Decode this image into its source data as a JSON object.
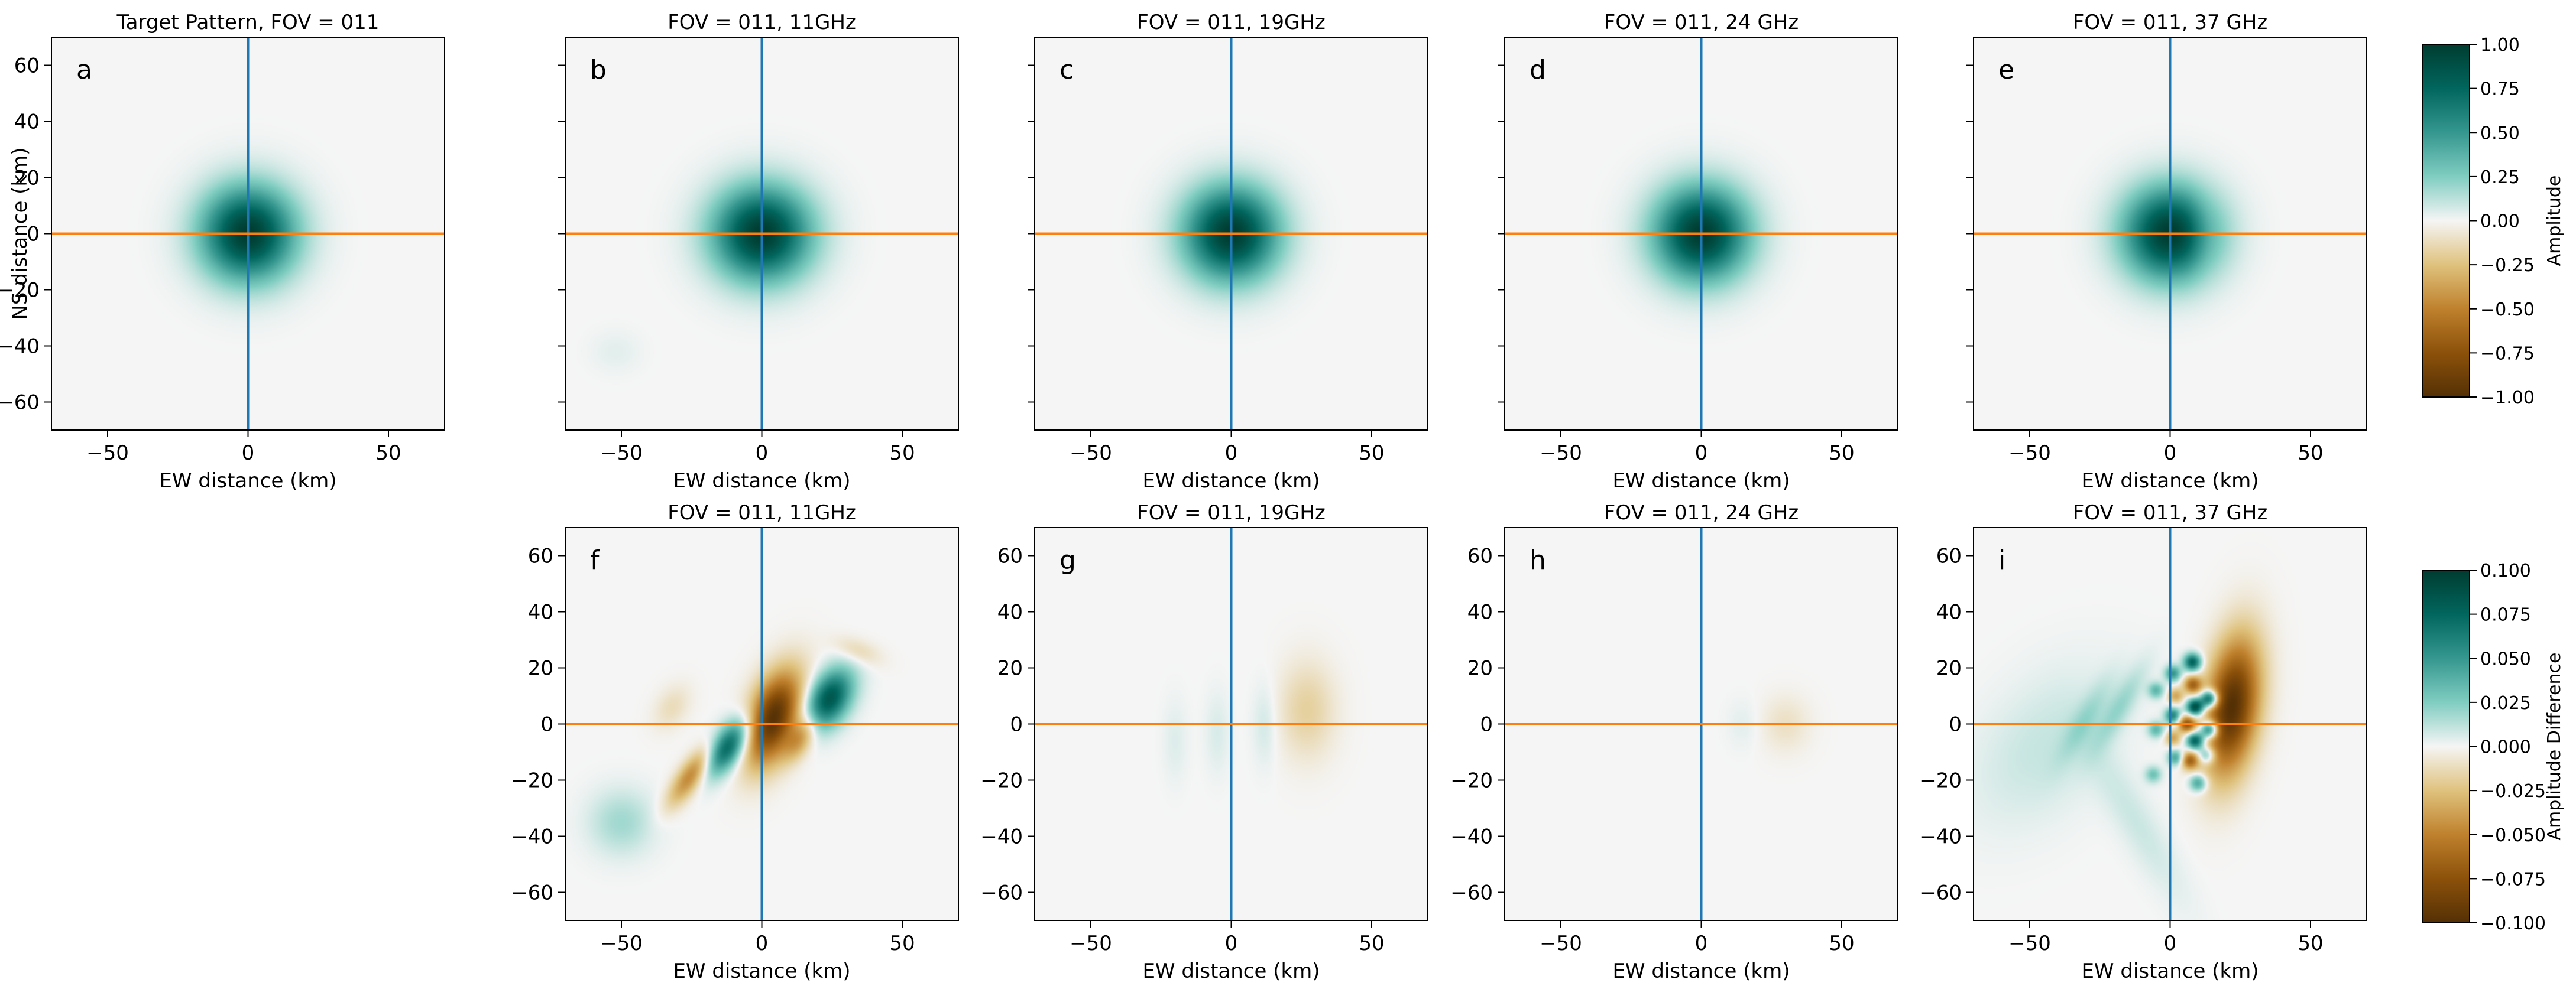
{
  "chart_data": {
    "type": "heatmap",
    "figure_layout": "2 rows x 5 columns (bottom-left panel empty), plus two colorbars",
    "panels": [
      {
        "id": "a",
        "row": 1,
        "title": "Target Pattern, FOV = 011",
        "kind": "pattern",
        "blobs": [
          {
            "x": 0,
            "y": 0,
            "sx": 11.5,
            "sy": 11.5,
            "a": 1.0
          }
        ]
      },
      {
        "id": "b",
        "row": 1,
        "title": "FOV = 011, 11GHz",
        "kind": "pattern",
        "blobs": [
          {
            "x": 0,
            "y": 0,
            "sx": 12,
            "sy": 11.5,
            "a": 1.0
          },
          {
            "x": -52,
            "y": -42,
            "sx": 6,
            "sy": 5,
            "a": 0.04
          }
        ]
      },
      {
        "id": "c",
        "row": 1,
        "title": "FOV = 011, 19GHz",
        "kind": "pattern",
        "blobs": [
          {
            "x": 0,
            "y": 0,
            "sx": 11.5,
            "sy": 11.5,
            "a": 1.0
          }
        ]
      },
      {
        "id": "d",
        "row": 1,
        "title": "FOV = 011, 24 GHz",
        "kind": "pattern",
        "blobs": [
          {
            "x": 0,
            "y": 0,
            "sx": 11.5,
            "sy": 11.5,
            "a": 1.0
          }
        ]
      },
      {
        "id": "e",
        "row": 1,
        "title": "FOV = 011, 37 GHz",
        "kind": "pattern",
        "blobs": [
          {
            "x": 0,
            "y": 0,
            "sx": 11.5,
            "sy": 11.5,
            "a": 1.0
          },
          {
            "x": 12,
            "y": 0,
            "sx": 4,
            "sy": 9,
            "a": -0.1
          }
        ]
      },
      {
        "id": "f",
        "row": 2,
        "title": "FOV = 011, 11GHz",
        "kind": "difference",
        "blobs": [
          {
            "x": 4,
            "y": 2,
            "sx": 6,
            "sy": 12,
            "a": -0.1,
            "r": -20
          },
          {
            "x": 24,
            "y": 9,
            "sx": 5,
            "sy": 8,
            "a": 0.085,
            "r": -30
          },
          {
            "x": -12,
            "y": -8,
            "sx": 4,
            "sy": 8,
            "a": 0.08,
            "r": -35
          },
          {
            "x": -25,
            "y": -18,
            "sx": 3,
            "sy": 9,
            "a": -0.05,
            "r": -35
          },
          {
            "x": 14,
            "y": -5,
            "sx": 3,
            "sy": 6,
            "a": -0.035,
            "r": -30
          },
          {
            "x": -50,
            "y": -35,
            "sx": 8,
            "sy": 8,
            "a": 0.018
          },
          {
            "x": 34,
            "y": 26,
            "sx": 6,
            "sy": 3,
            "a": -0.015,
            "r": -20
          },
          {
            "x": -32,
            "y": 6,
            "sx": 4,
            "sy": 6,
            "a": -0.012,
            "r": -30
          }
        ]
      },
      {
        "id": "g",
        "row": 2,
        "title": "FOV = 011, 19GHz",
        "kind": "difference",
        "blobs": [
          {
            "x": 27,
            "y": 5,
            "sx": 7,
            "sy": 12,
            "a": -0.018
          },
          {
            "x": 12,
            "y": 0,
            "sx": 3,
            "sy": 10,
            "a": 0.008
          },
          {
            "x": -5,
            "y": -3,
            "sx": 3,
            "sy": 10,
            "a": 0.006
          },
          {
            "x": -20,
            "y": -6,
            "sx": 3,
            "sy": 10,
            "a": 0.005
          }
        ]
      },
      {
        "id": "h",
        "row": 2,
        "title": "FOV = 011, 24 GHz",
        "kind": "difference",
        "blobs": [
          {
            "x": 30,
            "y": 0,
            "sx": 6,
            "sy": 7,
            "a": -0.01
          },
          {
            "x": 15,
            "y": 0,
            "sx": 4,
            "sy": 6,
            "a": 0.004
          }
        ]
      },
      {
        "id": "i",
        "row": 2,
        "title": "FOV = 011, 37 GHz",
        "kind": "difference",
        "blobs": [
          {
            "x": 22,
            "y": 6,
            "sx": 6.5,
            "sy": 17,
            "a": -0.1,
            "r": -8
          },
          {
            "x": 8,
            "y": 22,
            "sx": 2.2,
            "sy": 2.2,
            "a": 0.08
          },
          {
            "x": 8,
            "y": 14,
            "sx": 2.2,
            "sy": 2.2,
            "a": -0.06
          },
          {
            "x": 9,
            "y": 6,
            "sx": 2.2,
            "sy": 2.2,
            "a": 0.1
          },
          {
            "x": 6,
            "y": 0,
            "sx": 2.2,
            "sy": 2.2,
            "a": -0.07
          },
          {
            "x": 9,
            "y": -6,
            "sx": 2.2,
            "sy": 2.2,
            "a": 0.09
          },
          {
            "x": 7,
            "y": -13,
            "sx": 2.2,
            "sy": 2.2,
            "a": -0.06
          },
          {
            "x": 10,
            "y": -21,
            "sx": 2.2,
            "sy": 2.2,
            "a": 0.05
          },
          {
            "x": 14,
            "y": 9,
            "sx": 2.2,
            "sy": 2.2,
            "a": 0.1
          },
          {
            "x": 14,
            "y": -2,
            "sx": 2.2,
            "sy": 2.2,
            "a": 0.09
          },
          {
            "x": 13,
            "y": -11,
            "sx": 2.2,
            "sy": 2.2,
            "a": 0.05
          },
          {
            "x": 1,
            "y": 18,
            "sx": 2,
            "sy": 2,
            "a": 0.05
          },
          {
            "x": 2,
            "y": 10,
            "sx": 2,
            "sy": 2,
            "a": -0.035
          },
          {
            "x": 1,
            "y": 3,
            "sx": 2,
            "sy": 2,
            "a": 0.06
          },
          {
            "x": 1,
            "y": -5,
            "sx": 2,
            "sy": 2,
            "a": -0.035
          },
          {
            "x": 2,
            "y": -12,
            "sx": 2,
            "sy": 2,
            "a": 0.045
          },
          {
            "x": -5,
            "y": 12,
            "sx": 2,
            "sy": 2,
            "a": 0.035
          },
          {
            "x": -5,
            "y": -2,
            "sx": 2,
            "sy": 2,
            "a": 0.035
          },
          {
            "x": -6,
            "y": -18,
            "sx": 2,
            "sy": 2,
            "a": 0.03
          },
          {
            "x": -18,
            "y": 6,
            "sx": 3,
            "sy": 12,
            "a": 0.018,
            "r": -30
          },
          {
            "x": -30,
            "y": 2,
            "sx": 3,
            "sy": 12,
            "a": 0.014,
            "r": -30
          },
          {
            "x": -45,
            "y": -8,
            "sx": 14,
            "sy": 22,
            "a": 0.01,
            "r": -40
          },
          {
            "x": -12,
            "y": -35,
            "sx": 5,
            "sy": 22,
            "a": 0.009,
            "r": 30
          }
        ]
      }
    ],
    "x": {
      "label": "EW distance (km)",
      "range": [
        -70,
        70
      ],
      "ticks": [
        -50,
        0,
        50
      ],
      "tick_labels": [
        "−50",
        "0",
        "50"
      ]
    },
    "y": {
      "label": "NS distance (km)",
      "range": [
        -70,
        70
      ],
      "ticks": [
        60,
        40,
        20,
        0,
        -20,
        -40,
        -60
      ],
      "tick_labels": [
        "60",
        "40",
        "20",
        "0",
        "−20",
        "−40",
        "−60"
      ]
    },
    "crosshair": {
      "vertical_x": 0,
      "horizontal_y": 0,
      "vertical_color": "#1f77b4",
      "horizontal_color": "#ff7f0e"
    },
    "colormap": {
      "name": "BrBG",
      "low": "#543005",
      "mid": "#f5f5f5",
      "high": "#003c30"
    },
    "colorbars": [
      {
        "label": "Amplitude",
        "range": [
          -1.0,
          1.0
        ],
        "ticks": [
          "1.00",
          "0.75",
          "0.50",
          "0.25",
          "0.00",
          "−0.25",
          "−0.50",
          "−0.75",
          "−1.00"
        ]
      },
      {
        "label": "Amplitude Difference",
        "range": [
          -0.1,
          0.1
        ],
        "ticks": [
          "0.100",
          "0.075",
          "0.050",
          "0.025",
          "0.000",
          "−0.025",
          "−0.050",
          "−0.075",
          "−0.100"
        ]
      }
    ]
  }
}
